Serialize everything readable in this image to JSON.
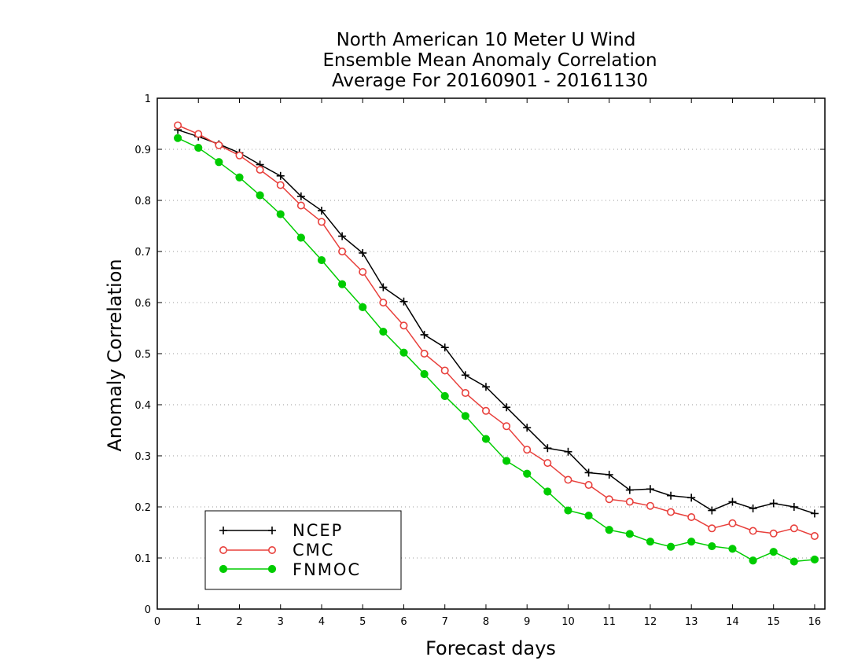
{
  "chart_data": {
    "type": "line",
    "title": [
      "North American 10 Meter U Wind",
      "Ensemble Mean Anomaly Correlation",
      "Average For 20160901 - 20161130"
    ],
    "xlabel": "Forecast days",
    "ylabel": "Anomaly Correlation",
    "xlim": [
      0,
      16.25
    ],
    "ylim": [
      0,
      1
    ],
    "xticks": [
      0,
      1,
      2,
      3,
      4,
      5,
      6,
      7,
      8,
      9,
      10,
      11,
      12,
      13,
      14,
      15,
      16
    ],
    "yticks": [
      0,
      0.1,
      0.2,
      0.3,
      0.4,
      0.5,
      0.6,
      0.7,
      0.8,
      0.9,
      1
    ],
    "ytick_labels": [
      "0",
      "0.1",
      "0.2",
      "0.3",
      "0.4",
      "0.5",
      "0.6",
      "0.7",
      "0.8",
      "0.9",
      "1"
    ],
    "grid": "horizontal dotted",
    "legend_position": "bottom-left",
    "x": [
      0.5,
      1,
      1.5,
      2,
      2.5,
      3,
      3.5,
      4,
      4.5,
      5,
      5.5,
      6,
      6.5,
      7,
      7.5,
      8,
      8.5,
      9,
      9.5,
      10,
      10.5,
      11,
      11.5,
      12,
      12.5,
      13,
      13.5,
      14,
      14.5,
      15,
      15.5,
      16
    ],
    "series": [
      {
        "name": "NCEP",
        "color": "#000000",
        "marker": "plus",
        "values": [
          0.938,
          0.925,
          0.91,
          0.893,
          0.87,
          0.848,
          0.808,
          0.78,
          0.73,
          0.697,
          0.63,
          0.602,
          0.537,
          0.512,
          0.458,
          0.435,
          0.395,
          0.355,
          0.315,
          0.308,
          0.267,
          0.263,
          0.233,
          0.235,
          0.222,
          0.218,
          0.193,
          0.21,
          0.197,
          0.207,
          0.2,
          0.187
        ]
      },
      {
        "name": "CMC",
        "color": "#e8403c",
        "marker": "open-circle",
        "values": [
          0.947,
          0.93,
          0.908,
          0.888,
          0.86,
          0.83,
          0.79,
          0.758,
          0.7,
          0.66,
          0.6,
          0.555,
          0.5,
          0.467,
          0.423,
          0.388,
          0.358,
          0.312,
          0.286,
          0.253,
          0.243,
          0.215,
          0.21,
          0.202,
          0.19,
          0.18,
          0.158,
          0.168,
          0.153,
          0.148,
          0.158,
          0.143
        ]
      },
      {
        "name": "FNMOC",
        "color": "#00cc00",
        "marker": "filled-circle",
        "values": [
          0.922,
          0.903,
          0.875,
          0.845,
          0.81,
          0.773,
          0.727,
          0.683,
          0.636,
          0.591,
          0.543,
          0.502,
          0.46,
          0.417,
          0.378,
          0.333,
          0.29,
          0.265,
          0.23,
          0.193,
          0.183,
          0.155,
          0.147,
          0.132,
          0.122,
          0.132,
          0.123,
          0.118,
          0.095,
          0.112,
          0.093,
          0.097
        ]
      }
    ]
  }
}
